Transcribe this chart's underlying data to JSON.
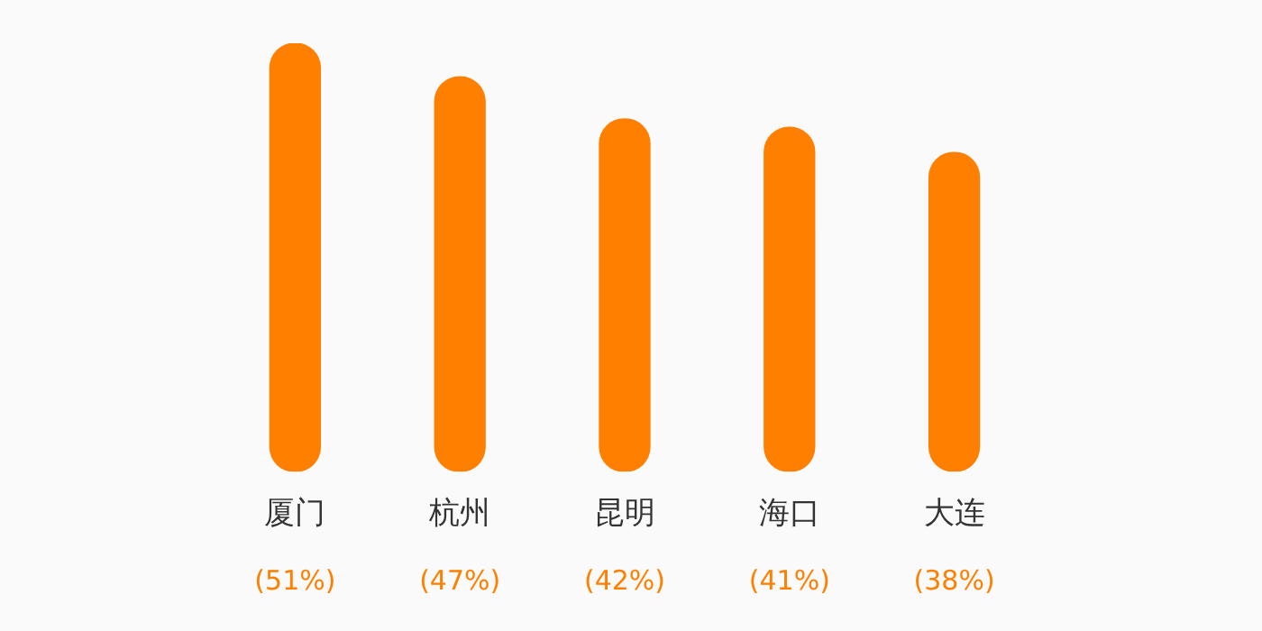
{
  "chart_data": {
    "type": "bar",
    "categories": [
      "厦门",
      "杭州",
      "昆明",
      "海口",
      "大连"
    ],
    "values": [
      51,
      47,
      42,
      41,
      38
    ],
    "value_labels": [
      "(51%)",
      "(47%)",
      "(42%)",
      "(41%)",
      "(38%)"
    ],
    "color": "#ff7f00",
    "grid": false
  }
}
